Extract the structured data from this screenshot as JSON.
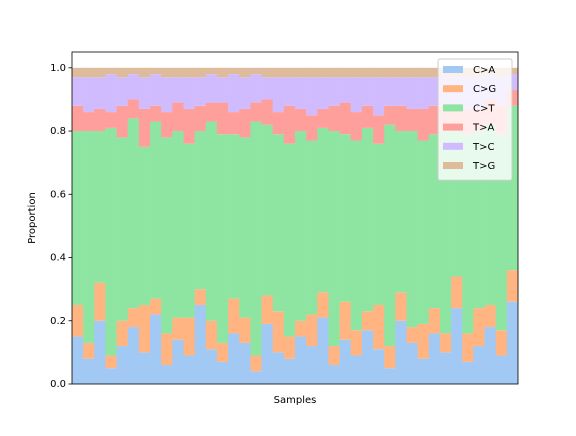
{
  "chart_data": {
    "type": "stacked_bar",
    "xlabel": "Samples",
    "ylabel": "Proportion",
    "categories": [
      null,
      null,
      null,
      null,
      null,
      null,
      null,
      null,
      null,
      null,
      null,
      null,
      null,
      null,
      null,
      null,
      null,
      null,
      null,
      null,
      null,
      null,
      null,
      null,
      null,
      null,
      null,
      null,
      null,
      null,
      null,
      null,
      null,
      null,
      null,
      null,
      null,
      null,
      null,
      null
    ],
    "series": [
      {
        "name": "C>A",
        "color": "#a1c9f4",
        "values": [
          0.15,
          0.08,
          0.2,
          0.05,
          0.12,
          0.18,
          0.1,
          0.22,
          0.06,
          0.14,
          0.09,
          0.25,
          0.11,
          0.07,
          0.16,
          0.13,
          0.04,
          0.19,
          0.1,
          0.08,
          0.15,
          0.12,
          0.21,
          0.06,
          0.14,
          0.09,
          0.17,
          0.11,
          0.05,
          0.2,
          0.13,
          0.08,
          0.16,
          0.1,
          0.24,
          0.07,
          0.12,
          0.18,
          0.09,
          0.26
        ]
      },
      {
        "name": "C>G",
        "color": "#ffb482",
        "values": [
          0.1,
          0.05,
          0.12,
          0.04,
          0.08,
          0.06,
          0.15,
          0.05,
          0.1,
          0.07,
          0.12,
          0.05,
          0.09,
          0.06,
          0.11,
          0.08,
          0.05,
          0.09,
          0.13,
          0.07,
          0.05,
          0.1,
          0.08,
          0.06,
          0.12,
          0.08,
          0.06,
          0.14,
          0.07,
          0.09,
          0.05,
          0.11,
          0.08,
          0.06,
          0.1,
          0.09,
          0.12,
          0.07,
          0.08,
          0.1
        ]
      },
      {
        "name": "C>T",
        "color": "#8de5a1",
        "values": [
          0.55,
          0.67,
          0.48,
          0.72,
          0.58,
          0.6,
          0.5,
          0.56,
          0.62,
          0.59,
          0.55,
          0.5,
          0.63,
          0.66,
          0.52,
          0.57,
          0.74,
          0.54,
          0.56,
          0.61,
          0.6,
          0.55,
          0.52,
          0.68,
          0.53,
          0.6,
          0.58,
          0.51,
          0.7,
          0.51,
          0.62,
          0.58,
          0.55,
          0.64,
          0.48,
          0.63,
          0.56,
          0.57,
          0.62,
          0.52
        ]
      },
      {
        "name": "T>A",
        "color": "#ff9f9b",
        "values": [
          0.08,
          0.06,
          0.07,
          0.05,
          0.1,
          0.06,
          0.12,
          0.05,
          0.08,
          0.09,
          0.11,
          0.08,
          0.06,
          0.1,
          0.07,
          0.09,
          0.06,
          0.08,
          0.07,
          0.12,
          0.07,
          0.08,
          0.06,
          0.08,
          0.1,
          0.09,
          0.07,
          0.09,
          0.06,
          0.08,
          0.07,
          0.1,
          0.09,
          0.08,
          0.06,
          0.08,
          0.07,
          0.08,
          0.09,
          0.05
        ]
      },
      {
        "name": "T>C",
        "color": "#d0bbff",
        "values": [
          0.09,
          0.11,
          0.1,
          0.12,
          0.09,
          0.08,
          0.1,
          0.1,
          0.11,
          0.08,
          0.1,
          0.09,
          0.09,
          0.08,
          0.12,
          0.1,
          0.09,
          0.07,
          0.11,
          0.09,
          0.1,
          0.12,
          0.1,
          0.09,
          0.08,
          0.11,
          0.09,
          0.12,
          0.09,
          0.09,
          0.1,
          0.1,
          0.09,
          0.09,
          0.09,
          0.1,
          0.1,
          0.08,
          0.09,
          0.05
        ]
      },
      {
        "name": "T>G",
        "color": "#debb9b",
        "values": [
          0.03,
          0.03,
          0.03,
          0.02,
          0.03,
          0.02,
          0.03,
          0.02,
          0.03,
          0.03,
          0.03,
          0.03,
          0.02,
          0.03,
          0.02,
          0.03,
          0.02,
          0.03,
          0.03,
          0.03,
          0.03,
          0.03,
          0.03,
          0.03,
          0.03,
          0.03,
          0.03,
          0.03,
          0.03,
          0.03,
          0.03,
          0.03,
          0.03,
          0.03,
          0.03,
          0.03,
          0.03,
          0.02,
          0.03,
          0.02
        ]
      }
    ],
    "ylim": [
      0,
      1.05
    ],
    "yticks": [
      {
        "value": 0,
        "label": "0.0"
      },
      0.2,
      0.4,
      0.6,
      0.8,
      {
        "value": 1,
        "label": "1.0"
      }
    ],
    "legend": "upper right"
  }
}
